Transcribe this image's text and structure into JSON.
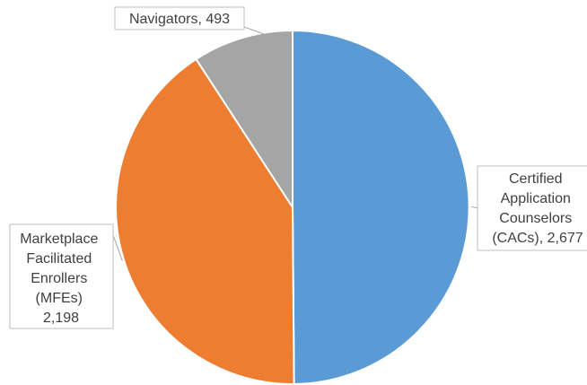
{
  "chart_data": {
    "type": "pie",
    "title": "",
    "slices": [
      {
        "key": "cac",
        "label_lines": [
          "Certified",
          "Application",
          "Counselors",
          "(CACs), 2,677"
        ],
        "value": 2677,
        "color": "#5b9bd5"
      },
      {
        "key": "mfe",
        "label_lines": [
          "Marketplace",
          "Facilitated",
          "Enrollers",
          "(MFEs)",
          "2,198"
        ],
        "value": 2198,
        "color": "#ed7d31"
      },
      {
        "key": "nav",
        "label_lines": [
          "Navigators, 493"
        ],
        "value": 493,
        "color": "#a5a5a5"
      }
    ]
  }
}
